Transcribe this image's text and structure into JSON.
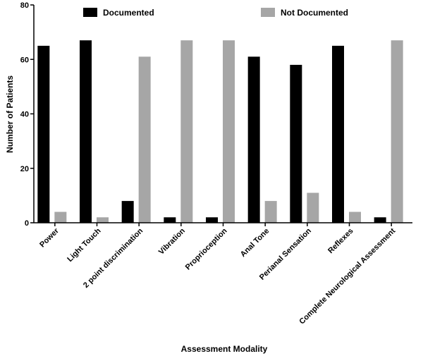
{
  "chart_data": {
    "type": "bar",
    "title": "",
    "xlabel": "Assessment Modality",
    "ylabel": "Number of Patients",
    "ylim": [
      0,
      80
    ],
    "yticks": [
      0,
      20,
      40,
      60,
      80
    ],
    "grid": false,
    "legend_position": "top",
    "categories": [
      "Power",
      "Light Touch",
      "2 point discrimination",
      "Vibration",
      "Proprioception",
      "Anal Tone",
      "Perianal Sensation",
      "Reflexes",
      "Complete Neurological Assessment"
    ],
    "series": [
      {
        "name": "Documented",
        "color": "#000000",
        "values": [
          65,
          67,
          8,
          2,
          2,
          61,
          58,
          65,
          2
        ]
      },
      {
        "name": "Not Documented",
        "color": "#a6a6a6",
        "values": [
          4,
          2,
          61,
          67,
          67,
          8,
          11,
          4,
          67
        ]
      }
    ]
  }
}
